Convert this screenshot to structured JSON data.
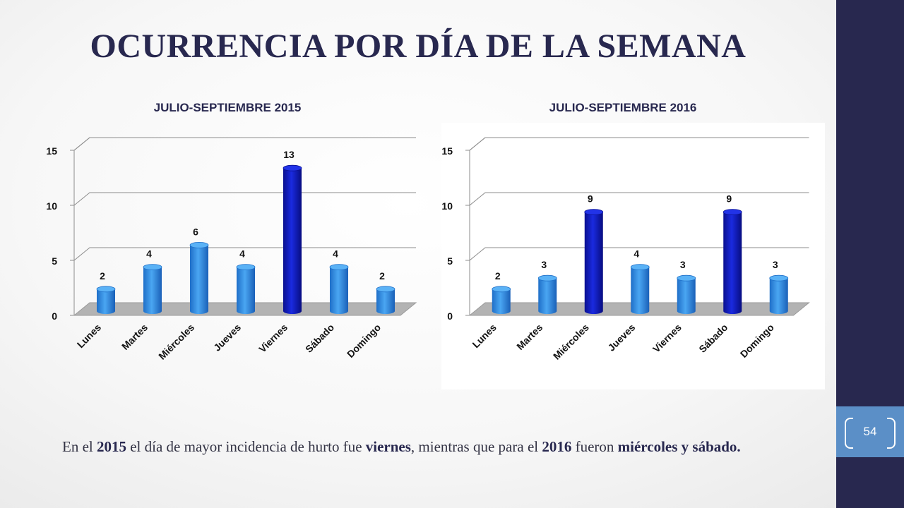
{
  "title": "OCURRENCIA POR DÍA DE LA SEMANA",
  "page_number": "54",
  "caption": {
    "t1": "En el ",
    "b1": "2015",
    "t2": " el día de mayor incidencia de hurto fue ",
    "b2": "viernes",
    "t3": ", mientras que para el ",
    "b3": "2016",
    "t4": " fueron ",
    "b4": "miércoles y sábado."
  },
  "colors": {
    "bar_light": "#2f8fe0",
    "bar_dark": "#0c18b8",
    "floor": "#b3b3b3",
    "sidebar": "#28284f",
    "page_box": "#5b8fc7",
    "title": "#28284f"
  },
  "chart_data": [
    {
      "type": "bar",
      "title": "JULIO-SEPTIEMBRE 2015",
      "categories": [
        "Lunes",
        "Martes",
        "Miércoles",
        "Jueves",
        "Viernes",
        "Sábado",
        "Domingo"
      ],
      "values": [
        2,
        4,
        6,
        4,
        13,
        4,
        2
      ],
      "highlight": [
        false,
        false,
        false,
        false,
        true,
        false,
        false
      ],
      "yticks": [
        0,
        5,
        10,
        15
      ],
      "ylim": [
        0,
        15
      ],
      "grid": true,
      "style": "3d-cylinder"
    },
    {
      "type": "bar",
      "title": "JULIO-SEPTIEMBRE 2016",
      "categories": [
        "Lunes",
        "Martes",
        "Miércoles",
        "Jueves",
        "Viernes",
        "Sábado",
        "Domingo"
      ],
      "values": [
        2,
        3,
        9,
        4,
        3,
        9,
        3
      ],
      "highlight": [
        false,
        false,
        true,
        false,
        false,
        true,
        false
      ],
      "yticks": [
        0,
        5,
        10,
        15
      ],
      "ylim": [
        0,
        15
      ],
      "grid": true,
      "style": "3d-cylinder"
    }
  ]
}
